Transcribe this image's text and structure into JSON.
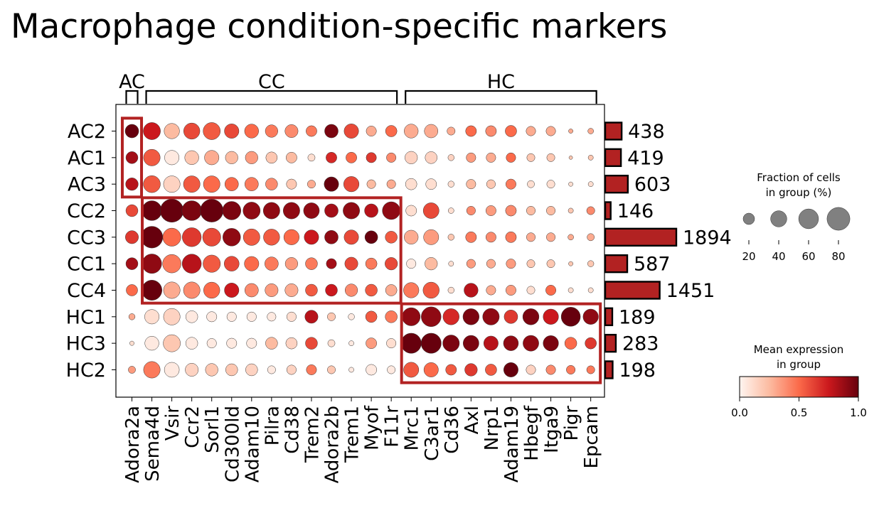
{
  "chart_data": {
    "type": "dotplot",
    "title": "Macrophage condition-specific markers",
    "genes": [
      "Adora2a",
      "Sema4d",
      "Vsir",
      "Ccr2",
      "Sorl1",
      "Cd300ld",
      "Adam10",
      "Pilra",
      "Cd38",
      "Trem2",
      "Adora2b",
      "Trem1",
      "Myof",
      "F11r",
      "Mrc1",
      "C3ar1",
      "Cd36",
      "Axl",
      "Nrp1",
      "Adam19",
      "Hbegf",
      "Itga9",
      "Pigr",
      "Epcam"
    ],
    "groups": [
      "AC2",
      "AC1",
      "AC3",
      "CC2",
      "CC3",
      "CC1",
      "CC4",
      "HC1",
      "HC3",
      "HC2"
    ],
    "gene_groups": [
      {
        "label": "AC",
        "start": 0,
        "end": 0
      },
      {
        "label": "CC",
        "start": 1,
        "end": 13
      },
      {
        "label": "HC",
        "start": 14,
        "end": 23
      }
    ],
    "highlight_boxes": [
      {
        "label": "AC",
        "row_start": 0,
        "row_end": 2,
        "col_start": 0,
        "col_end": 0
      },
      {
        "label": "CC",
        "row_start": 3,
        "row_end": 6,
        "col_start": 1,
        "col_end": 13
      },
      {
        "label": "HC",
        "row_start": 7,
        "row_end": 9,
        "col_start": 14,
        "col_end": 23
      }
    ],
    "fraction": [
      [
        28,
        45,
        36,
        40,
        45,
        32,
        30,
        24,
        26,
        18,
        28,
        32,
        16,
        20,
        30,
        28,
        10,
        18,
        18,
        20,
        14,
        14,
        3,
        5
      ],
      [
        22,
        42,
        32,
        30,
        32,
        24,
        24,
        20,
        18,
        8,
        18,
        18,
        16,
        14,
        24,
        22,
        6,
        14,
        14,
        14,
        10,
        10,
        2,
        4
      ],
      [
        24,
        44,
        42,
        42,
        42,
        28,
        28,
        22,
        16,
        10,
        32,
        36,
        12,
        12,
        20,
        18,
        6,
        14,
        12,
        16,
        8,
        10,
        3,
        4
      ],
      [
        22,
        60,
        82,
        60,
        80,
        52,
        45,
        42,
        42,
        38,
        28,
        42,
        28,
        48,
        18,
        38,
        5,
        12,
        16,
        18,
        12,
        12,
        4,
        10
      ],
      [
        26,
        72,
        50,
        55,
        50,
        48,
        42,
        40,
        36,
        32,
        28,
        32,
        25,
        22,
        30,
        35,
        6,
        18,
        16,
        18,
        12,
        12,
        5,
        8
      ],
      [
        22,
        58,
        52,
        56,
        46,
        34,
        32,
        28,
        24,
        22,
        16,
        26,
        20,
        24,
        14,
        24,
        4,
        12,
        12,
        14,
        10,
        10,
        3,
        6
      ],
      [
        20,
        62,
        42,
        42,
        40,
        32,
        28,
        26,
        26,
        22,
        22,
        24,
        22,
        20,
        36,
        40,
        6,
        30,
        14,
        16,
        10,
        16,
        4,
        4
      ],
      [
        6,
        32,
        42,
        22,
        16,
        14,
        14,
        12,
        14,
        26,
        10,
        6,
        20,
        22,
        50,
        60,
        40,
        40,
        42,
        28,
        40,
        36,
        56,
        36
      ],
      [
        3,
        30,
        45,
        22,
        14,
        16,
        16,
        22,
        20,
        22,
        8,
        4,
        18,
        14,
        62,
        62,
        42,
        38,
        32,
        34,
        38,
        36,
        22,
        20
      ],
      [
        8,
        42,
        34,
        26,
        24,
        22,
        22,
        10,
        14,
        16,
        10,
        4,
        18,
        10,
        35,
        32,
        18,
        24,
        20,
        32,
        14,
        14,
        12,
        10
      ]
    ],
    "expression": [
      [
        1.0,
        0.75,
        0.25,
        0.6,
        0.55,
        0.6,
        0.5,
        0.45,
        0.4,
        0.45,
        0.95,
        0.6,
        0.3,
        0.5,
        0.3,
        0.3,
        0.3,
        0.5,
        0.4,
        0.5,
        0.3,
        0.3,
        0.3,
        0.3
      ],
      [
        0.85,
        0.55,
        0.05,
        0.2,
        0.3,
        0.25,
        0.35,
        0.2,
        0.25,
        0.1,
        0.7,
        0.5,
        0.65,
        0.4,
        0.15,
        0.15,
        0.15,
        0.35,
        0.3,
        0.5,
        0.2,
        0.2,
        0.2,
        0.2
      ],
      [
        0.8,
        0.55,
        0.15,
        0.55,
        0.5,
        0.5,
        0.45,
        0.4,
        0.2,
        0.3,
        1.0,
        0.6,
        0.25,
        0.3,
        0.1,
        0.1,
        0.1,
        0.25,
        0.2,
        0.45,
        0.1,
        0.1,
        0.1,
        0.1
      ],
      [
        0.6,
        1.0,
        1.0,
        0.95,
        1.0,
        0.95,
        0.9,
        0.9,
        0.9,
        0.9,
        0.85,
        0.9,
        0.8,
        0.9,
        0.1,
        0.6,
        0.1,
        0.4,
        0.35,
        0.4,
        0.25,
        0.25,
        0.2,
        0.4
      ],
      [
        0.65,
        1.0,
        0.5,
        0.65,
        0.6,
        0.9,
        0.55,
        0.55,
        0.5,
        0.75,
        0.9,
        0.6,
        1.0,
        0.55,
        0.3,
        0.35,
        0.2,
        0.45,
        0.4,
        0.45,
        0.3,
        0.3,
        0.3,
        0.3
      ],
      [
        0.85,
        0.9,
        0.45,
        0.8,
        0.55,
        0.6,
        0.5,
        0.45,
        0.35,
        0.45,
        0.85,
        0.6,
        0.45,
        0.6,
        0.05,
        0.25,
        0.1,
        0.35,
        0.3,
        0.35,
        0.2,
        0.2,
        0.2,
        0.2
      ],
      [
        0.5,
        1.0,
        0.3,
        0.4,
        0.5,
        0.75,
        0.4,
        0.35,
        0.3,
        0.55,
        0.75,
        0.4,
        0.55,
        0.3,
        0.45,
        0.55,
        0.1,
        0.8,
        0.3,
        0.35,
        0.1,
        0.5,
        0.1,
        0.1
      ],
      [
        0.3,
        0.1,
        0.15,
        0.05,
        0.05,
        0.05,
        0.05,
        0.05,
        0.1,
        0.8,
        0.2,
        0.05,
        0.55,
        0.45,
        0.9,
        0.9,
        0.7,
        0.95,
        0.9,
        0.65,
        0.95,
        0.75,
        1.0,
        0.9
      ],
      [
        0.1,
        0.05,
        0.2,
        0.05,
        0.05,
        0.05,
        0.05,
        0.25,
        0.15,
        0.6,
        0.1,
        0.05,
        0.35,
        0.1,
        1.0,
        1.0,
        0.95,
        0.95,
        0.8,
        0.9,
        0.9,
        0.95,
        0.5,
        0.65
      ],
      [
        0.35,
        0.45,
        0.05,
        0.15,
        0.2,
        0.2,
        0.15,
        0.05,
        0.15,
        0.45,
        0.2,
        0.05,
        0.05,
        0.05,
        0.55,
        0.5,
        0.55,
        0.65,
        0.55,
        1.0,
        0.15,
        0.4,
        0.45,
        0.45
      ]
    ],
    "counts": [
      438,
      419,
      603,
      146,
      1894,
      587,
      1451,
      189,
      283,
      198
    ],
    "size_legend": {
      "title_line1": "Fraction of cells",
      "title_line2": "in group (%)",
      "values": [
        20,
        40,
        60,
        80
      ],
      "labels": [
        "20",
        "40",
        "60",
        "80"
      ]
    },
    "color_legend": {
      "title_line1": "Mean expression",
      "title_line2": "in group",
      "range": [
        0,
        1
      ],
      "ticks": [
        "0.0",
        "0.5",
        "1.0"
      ],
      "colormap": "Reds",
      "colors": [
        "#fff5f0",
        "#fcbba1",
        "#fb6a4a",
        "#cb181d",
        "#67000d"
      ]
    },
    "bar_color": "#b22222",
    "box_color": "#b22222"
  }
}
